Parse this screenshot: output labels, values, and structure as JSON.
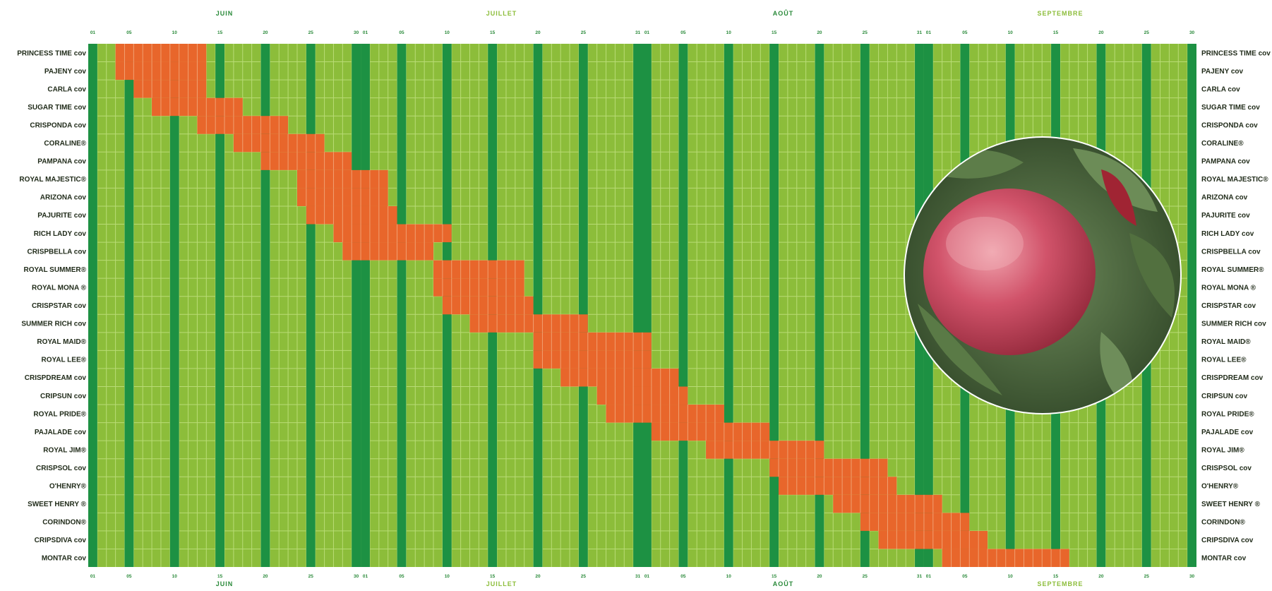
{
  "chart_data": {
    "type": "gantt",
    "title": "",
    "months": [
      {
        "name": "JUIN",
        "first_day": 1,
        "last_day": 30,
        "color": "#2a8a3a"
      },
      {
        "name": "JUILLET",
        "first_day": 1,
        "last_day": 31,
        "color": "#8cbd3a"
      },
      {
        "name": "AOÛT",
        "first_day": 1,
        "last_day": 31,
        "color": "#2a8a3a"
      },
      {
        "name": "SEPTEMBRE",
        "first_day": 1,
        "last_day": 30,
        "color": "#8cbd3a"
      }
    ],
    "axis_ticks": [
      {
        "label": "01",
        "day": 1
      },
      {
        "label": "05",
        "day": 5
      },
      {
        "label": "10",
        "day": 10
      },
      {
        "label": "15",
        "day": 15
      },
      {
        "label": "20",
        "day": 20
      },
      {
        "label": "25",
        "day": 25
      },
      {
        "label": "30",
        "day": 30
      },
      {
        "label": "01",
        "day": 31
      },
      {
        "label": "05",
        "day": 35
      },
      {
        "label": "10",
        "day": 40
      },
      {
        "label": "15",
        "day": 45
      },
      {
        "label": "20",
        "day": 50
      },
      {
        "label": "25",
        "day": 55
      },
      {
        "label": "31",
        "day": 61
      },
      {
        "label": "01",
        "day": 62
      },
      {
        "label": "05",
        "day": 66
      },
      {
        "label": "10",
        "day": 71
      },
      {
        "label": "15",
        "day": 76
      },
      {
        "label": "20",
        "day": 81
      },
      {
        "label": "25",
        "day": 86
      },
      {
        "label": "31",
        "day": 92
      },
      {
        "label": "01",
        "day": 93
      },
      {
        "label": "05",
        "day": 97
      },
      {
        "label": "10",
        "day": 102
      },
      {
        "label": "15",
        "day": 107
      },
      {
        "label": "20",
        "day": 112
      },
      {
        "label": "25",
        "day": 117
      },
      {
        "label": "30",
        "day": 122
      }
    ],
    "varieties": [
      {
        "name": "PRINCESS TIME cov",
        "start": "06-04",
        "end": "06-13"
      },
      {
        "name": "PAJENY cov",
        "start": "06-04",
        "end": "06-13"
      },
      {
        "name": "CARLA cov",
        "start": "06-06",
        "end": "06-13"
      },
      {
        "name": "SUGAR TIME cov",
        "start": "06-08",
        "end": "06-17"
      },
      {
        "name": "CRISPONDA cov",
        "start": "06-13",
        "end": "06-22"
      },
      {
        "name": "CORALINE®",
        "start": "06-17",
        "end": "06-26"
      },
      {
        "name": "PAMPANA cov",
        "start": "06-20",
        "end": "06-29"
      },
      {
        "name": "ROYAL MAJESTIC®",
        "start": "06-24",
        "end": "07-03"
      },
      {
        "name": "ARIZONA cov",
        "start": "06-24",
        "end": "07-03"
      },
      {
        "name": "PAJURITE cov",
        "start": "06-25",
        "end": "07-04"
      },
      {
        "name": "RICH LADY cov",
        "start": "06-28",
        "end": "07-10"
      },
      {
        "name": "CRISPBELLA cov",
        "start": "06-29",
        "end": "07-08"
      },
      {
        "name": "ROYAL SUMMER®",
        "start": "07-09",
        "end": "07-18"
      },
      {
        "name": "ROYAL MONA ®",
        "start": "07-09",
        "end": "07-18"
      },
      {
        "name": "CRISPSTAR cov",
        "start": "07-10",
        "end": "07-19"
      },
      {
        "name": "SUMMER RICH cov",
        "start": "07-13",
        "end": "07-25"
      },
      {
        "name": "ROYAL MAID®",
        "start": "07-20",
        "end": "08-01"
      },
      {
        "name": "ROYAL LEE®",
        "start": "07-20",
        "end": "08-01"
      },
      {
        "name": "CRISPDREAM cov",
        "start": "07-23",
        "end": "08-04"
      },
      {
        "name": "CRIPSUN cov",
        "start": "07-27",
        "end": "08-05"
      },
      {
        "name": "ROYAL PRIDE®",
        "start": "07-28",
        "end": "08-09"
      },
      {
        "name": "PAJALADE cov",
        "start": "08-02",
        "end": "08-14"
      },
      {
        "name": "ROYAL JIM®",
        "start": "08-08",
        "end": "08-20"
      },
      {
        "name": "CRISPSOL cov",
        "start": "08-15",
        "end": "08-27"
      },
      {
        "name": "O'HENRY®",
        "start": "08-16",
        "end": "08-28"
      },
      {
        "name": "SWEET HENRY ®",
        "start": "08-22",
        "end": "09-02"
      },
      {
        "name": "CORINDON®",
        "start": "08-25",
        "end": "09-05"
      },
      {
        "name": "CRIPSDIVA cov",
        "start": "08-27",
        "end": "09-07"
      },
      {
        "name": "MONTAR cov",
        "start": "09-03",
        "end": "09-16"
      }
    ]
  },
  "colors": {
    "cell": "#8cbd3a",
    "grid": "#b9dc76",
    "dark_band": "#1d9143",
    "bar": "#e8662b",
    "label": "#1f2a18"
  },
  "photo": {
    "icon": "peach-photo"
  }
}
